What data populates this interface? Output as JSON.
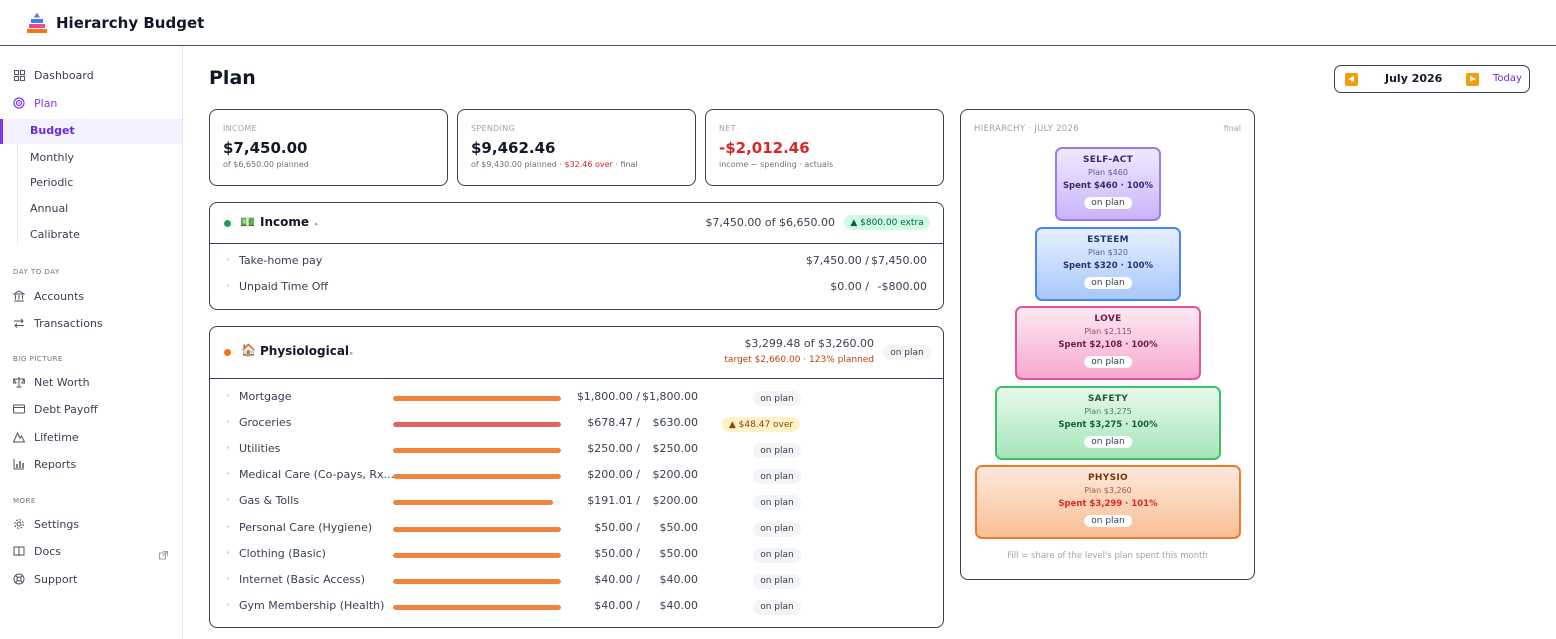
{
  "app": {
    "title": "Hierarchy Budget"
  },
  "sidebar": {
    "dashboard": "Dashboard",
    "plan": "Plan",
    "budget": "Budget",
    "monthly": "Monthly",
    "periodic": "Periodic",
    "annual": "Annual",
    "calibrate": "Calibrate",
    "section_day": "DAY TO DAY",
    "accounts": "Accounts",
    "transactions": "Transactions",
    "section_big": "BIG PICTURE",
    "net_worth": "Net Worth",
    "debt_payoff": "Debt Payoff",
    "lifetime": "Lifetime",
    "reports": "Reports",
    "section_more": "MORE",
    "settings": "Settings",
    "docs": "Docs",
    "support": "Support"
  },
  "page": {
    "title": "Plan"
  },
  "date_nav": {
    "label": "July 2026",
    "today": "Today"
  },
  "stats": {
    "income": {
      "label": "INCOME",
      "value": "$7,450.00",
      "sub": "of $6,650.00 planned"
    },
    "spending": {
      "label": "SPENDING",
      "value": "$9,462.46",
      "sub_a": "of $9,430.00 planned · ",
      "sub_over": "$32.46 over",
      "sub_b": " · final"
    },
    "net": {
      "label": "NET",
      "value": "-$2,012.46",
      "sub": "income − spending · actuals"
    }
  },
  "income_group": {
    "icon": "💵",
    "title": "Income",
    "summary": "$7,450.00 of $6,650.00",
    "badge": "▲ $800.00 extra",
    "rows": [
      {
        "name": "Take-home pay",
        "actual": "$7,450.00 /",
        "planned": "$7,450.00"
      },
      {
        "name": "Unpaid Time Off",
        "actual": "$0.00 /",
        "planned": "-$800.00"
      }
    ]
  },
  "physio_group": {
    "icon": "🏠",
    "title": "Physiological",
    "summary": "$3,299.48 of $3,260.00",
    "target": "target $2,660.00 · 123% planned",
    "badge": "on plan",
    "rows": [
      {
        "name": "Mortgage",
        "actual": "$1,800.00 /",
        "planned": "$1,800.00",
        "fill": 1.0,
        "status": "on plan"
      },
      {
        "name": "Groceries",
        "actual": "$678.47 /",
        "planned": "$630.00",
        "fill": 1.0,
        "status": "▲ $48.47 over"
      },
      {
        "name": "Utilities",
        "actual": "$250.00 /",
        "planned": "$250.00",
        "fill": 1.0,
        "status": "on plan"
      },
      {
        "name": "Medical Care (Co-pays, Rx...",
        "actual": "$200.00 /",
        "planned": "$200.00",
        "fill": 1.0,
        "status": "on plan"
      },
      {
        "name": "Gas & Tolls",
        "actual": "$191.01 /",
        "planned": "$200.00",
        "fill": 0.955,
        "status": "on plan"
      },
      {
        "name": "Personal Care (Hygiene)",
        "actual": "$50.00 /",
        "planned": "$50.00",
        "fill": 1.0,
        "status": "on plan"
      },
      {
        "name": "Clothing (Basic)",
        "actual": "$50.00 /",
        "planned": "$50.00",
        "fill": 1.0,
        "status": "on plan"
      },
      {
        "name": "Internet (Basic Access)",
        "actual": "$40.00 /",
        "planned": "$40.00",
        "fill": 1.0,
        "status": "on plan"
      },
      {
        "name": "Gym Membership (Health)",
        "actual": "$40.00 /",
        "planned": "$40.00",
        "fill": 1.0,
        "status": "on plan"
      }
    ]
  },
  "hierarchy": {
    "title": "HIERARCHY · JULY 2026",
    "tag": "final",
    "footer": "Fill = share of the level's plan spent this month",
    "levels": [
      {
        "label": "SELF-ACT",
        "plan": "Plan $460",
        "spent": "Spent $460 · 100%",
        "status": "on plan",
        "color": "#8b5cf6"
      },
      {
        "label": "ESTEEM",
        "plan": "Plan $320",
        "spent": "Spent $320 · 100%",
        "status": "on plan",
        "color": "#3b82f6"
      },
      {
        "label": "LOVE",
        "plan": "Plan $2,115",
        "spent": "Spent $2,108 · 100%",
        "status": "on plan",
        "color": "#ec4899"
      },
      {
        "label": "SAFETY",
        "plan": "Plan $3,275",
        "spent": "Spent $3,275 · 100%",
        "status": "on plan",
        "color": "#22c55e"
      },
      {
        "label": "PHYSIO",
        "plan": "Plan $3,260",
        "spent": "Spent $3,299 · 101%",
        "status": "on plan",
        "color": "#f97316"
      }
    ]
  }
}
